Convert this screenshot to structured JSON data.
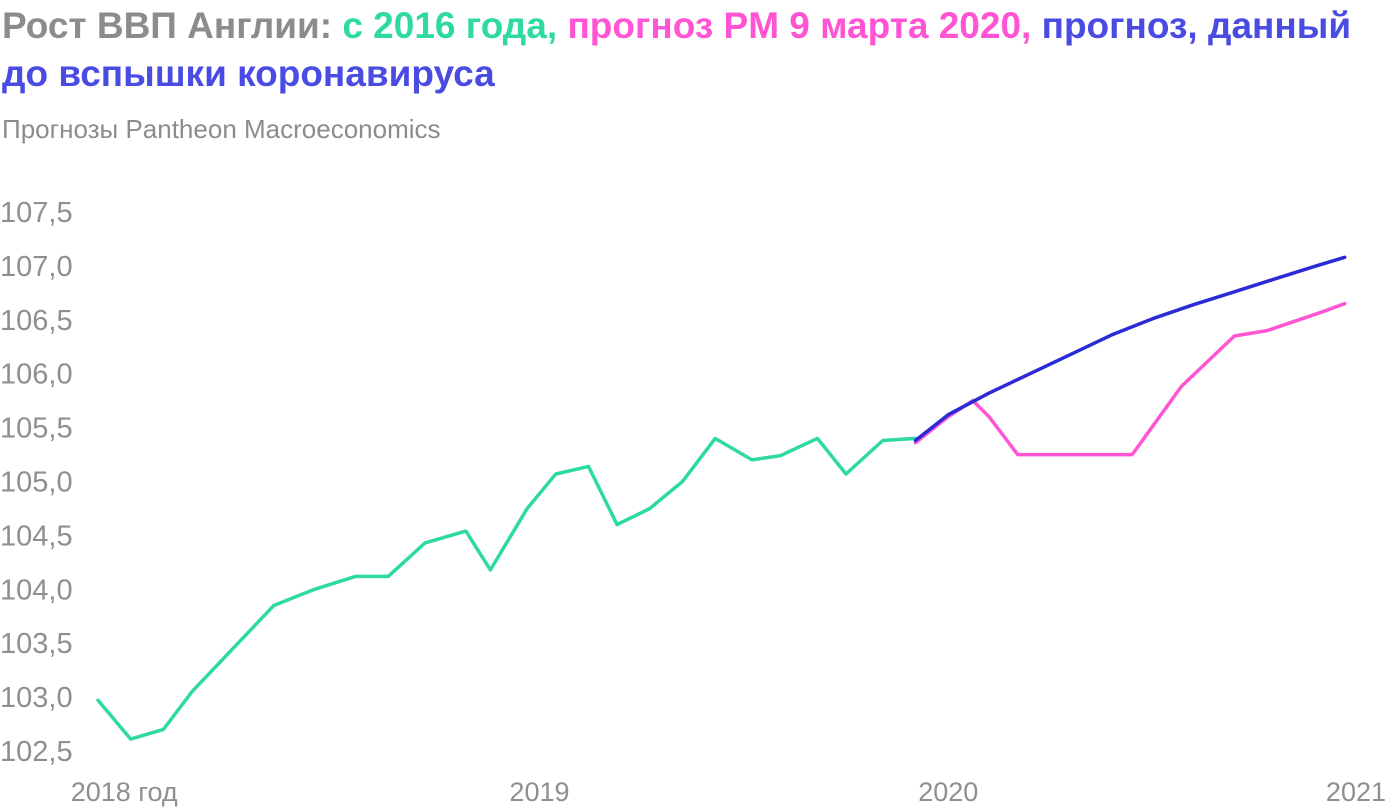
{
  "title": {
    "part1": "Рост ВВП Англии:",
    "part2": "с 2016 года,",
    "part3": "прогноз PM 9 марта 2020,",
    "part4": "прогноз, данный до вспышки коронавируса",
    "color1": "#8c8c8c",
    "color2": "#2ed9a3",
    "color3": "#ff55d4",
    "color4": "#4a4be3"
  },
  "subtitle": "Прогнозы Pantheon Macroeconomics",
  "chart_data": {
    "type": "line",
    "xlim": [
      2017.92,
      2021.0
    ],
    "ylim": [
      102.4,
      107.75
    ],
    "yticks": [
      102.5,
      103.0,
      103.5,
      104.0,
      104.5,
      105.0,
      105.5,
      106.0,
      106.5,
      107.0,
      107.5
    ],
    "ytick_labels": [
      "102,5",
      "103,0",
      "103,5",
      "104,0",
      "104,5",
      "105,0",
      "105,5",
      "106,0",
      "106,5",
      "107,0",
      "107,5"
    ],
    "xticks": [
      2018.0,
      2019.0,
      2020.0,
      2021.0
    ],
    "xtick_labels": [
      "2018 год",
      "2019",
      "2020",
      "2021"
    ],
    "grid": false,
    "series": [
      {
        "color": "#2ed9a3",
        "x": [
          2017.92,
          2018.0,
          2018.08,
          2018.15,
          2018.25,
          2018.35,
          2018.45,
          2018.55,
          2018.63,
          2018.72,
          2018.82,
          2018.88,
          2018.97,
          2019.04,
          2019.12,
          2019.19,
          2019.27,
          2019.35,
          2019.43,
          2019.52,
          2019.59,
          2019.68,
          2019.75,
          2019.84,
          2019.92
        ],
        "y": [
          102.97,
          102.61,
          102.7,
          103.05,
          103.45,
          103.85,
          104.0,
          104.12,
          104.12,
          104.43,
          104.54,
          104.18,
          104.75,
          105.07,
          105.14,
          104.6,
          104.75,
          105.0,
          105.4,
          105.2,
          105.24,
          105.4,
          105.07,
          105.38,
          105.4
        ]
      },
      {
        "color": "#ff55d4",
        "x": [
          2019.92,
          2020.0,
          2020.06,
          2020.1,
          2020.17,
          2020.32,
          2020.45,
          2020.57,
          2020.7,
          2020.78,
          2020.92,
          2020.97
        ],
        "y": [
          105.36,
          105.6,
          105.75,
          105.6,
          105.25,
          105.25,
          105.25,
          105.88,
          106.35,
          106.4,
          106.58,
          106.65
        ]
      },
      {
        "color": "#2b2bd6",
        "x": [
          2019.92,
          2020.0,
          2020.1,
          2020.2,
          2020.3,
          2020.4,
          2020.5,
          2020.6,
          2020.7,
          2020.8,
          2020.9,
          2020.97
        ],
        "y": [
          105.38,
          105.62,
          105.82,
          106.0,
          106.18,
          106.36,
          106.51,
          106.64,
          106.76,
          106.88,
          107.0,
          107.08
        ]
      }
    ]
  }
}
